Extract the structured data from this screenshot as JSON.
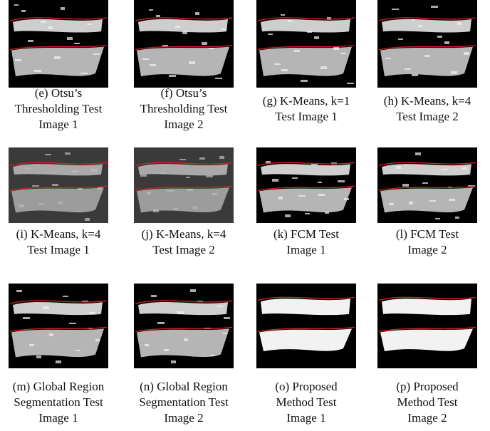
{
  "figure": {
    "panels": [
      {
        "caption": [
          "(e) Otsu’s",
          "Thresholding Test",
          "Image 1"
        ]
      },
      {
        "caption": [
          "(f) Otsu’s",
          "Thresholding Test",
          "Image 2"
        ]
      },
      {
        "caption": [
          "(g) K-Means, k=1",
          "Test Image 1"
        ]
      },
      {
        "caption": [
          "(h) K-Means, k=4",
          "Test Image 2"
        ]
      },
      {
        "caption": [
          "(i) K-Means, k=4",
          "Test Image 1"
        ]
      },
      {
        "caption": [
          "(j) K-Means, k=4",
          "Test Image 2"
        ]
      },
      {
        "caption": [
          "(k) FCM Test",
          "Image 1"
        ]
      },
      {
        "caption": [
          "(l) FCM Test",
          "Image 2"
        ]
      },
      {
        "caption": [
          "(m) Global Region",
          "Segmentation Test",
          "Image 1"
        ]
      },
      {
        "caption": [
          "(n) Global Region",
          "Segmentation Test",
          "Image 2"
        ]
      },
      {
        "caption": [
          "(o) Proposed",
          "Method Test",
          "Image 1"
        ]
      },
      {
        "caption": [
          "(p) Proposed",
          "Method Test",
          "Image 2"
        ]
      }
    ]
  }
}
